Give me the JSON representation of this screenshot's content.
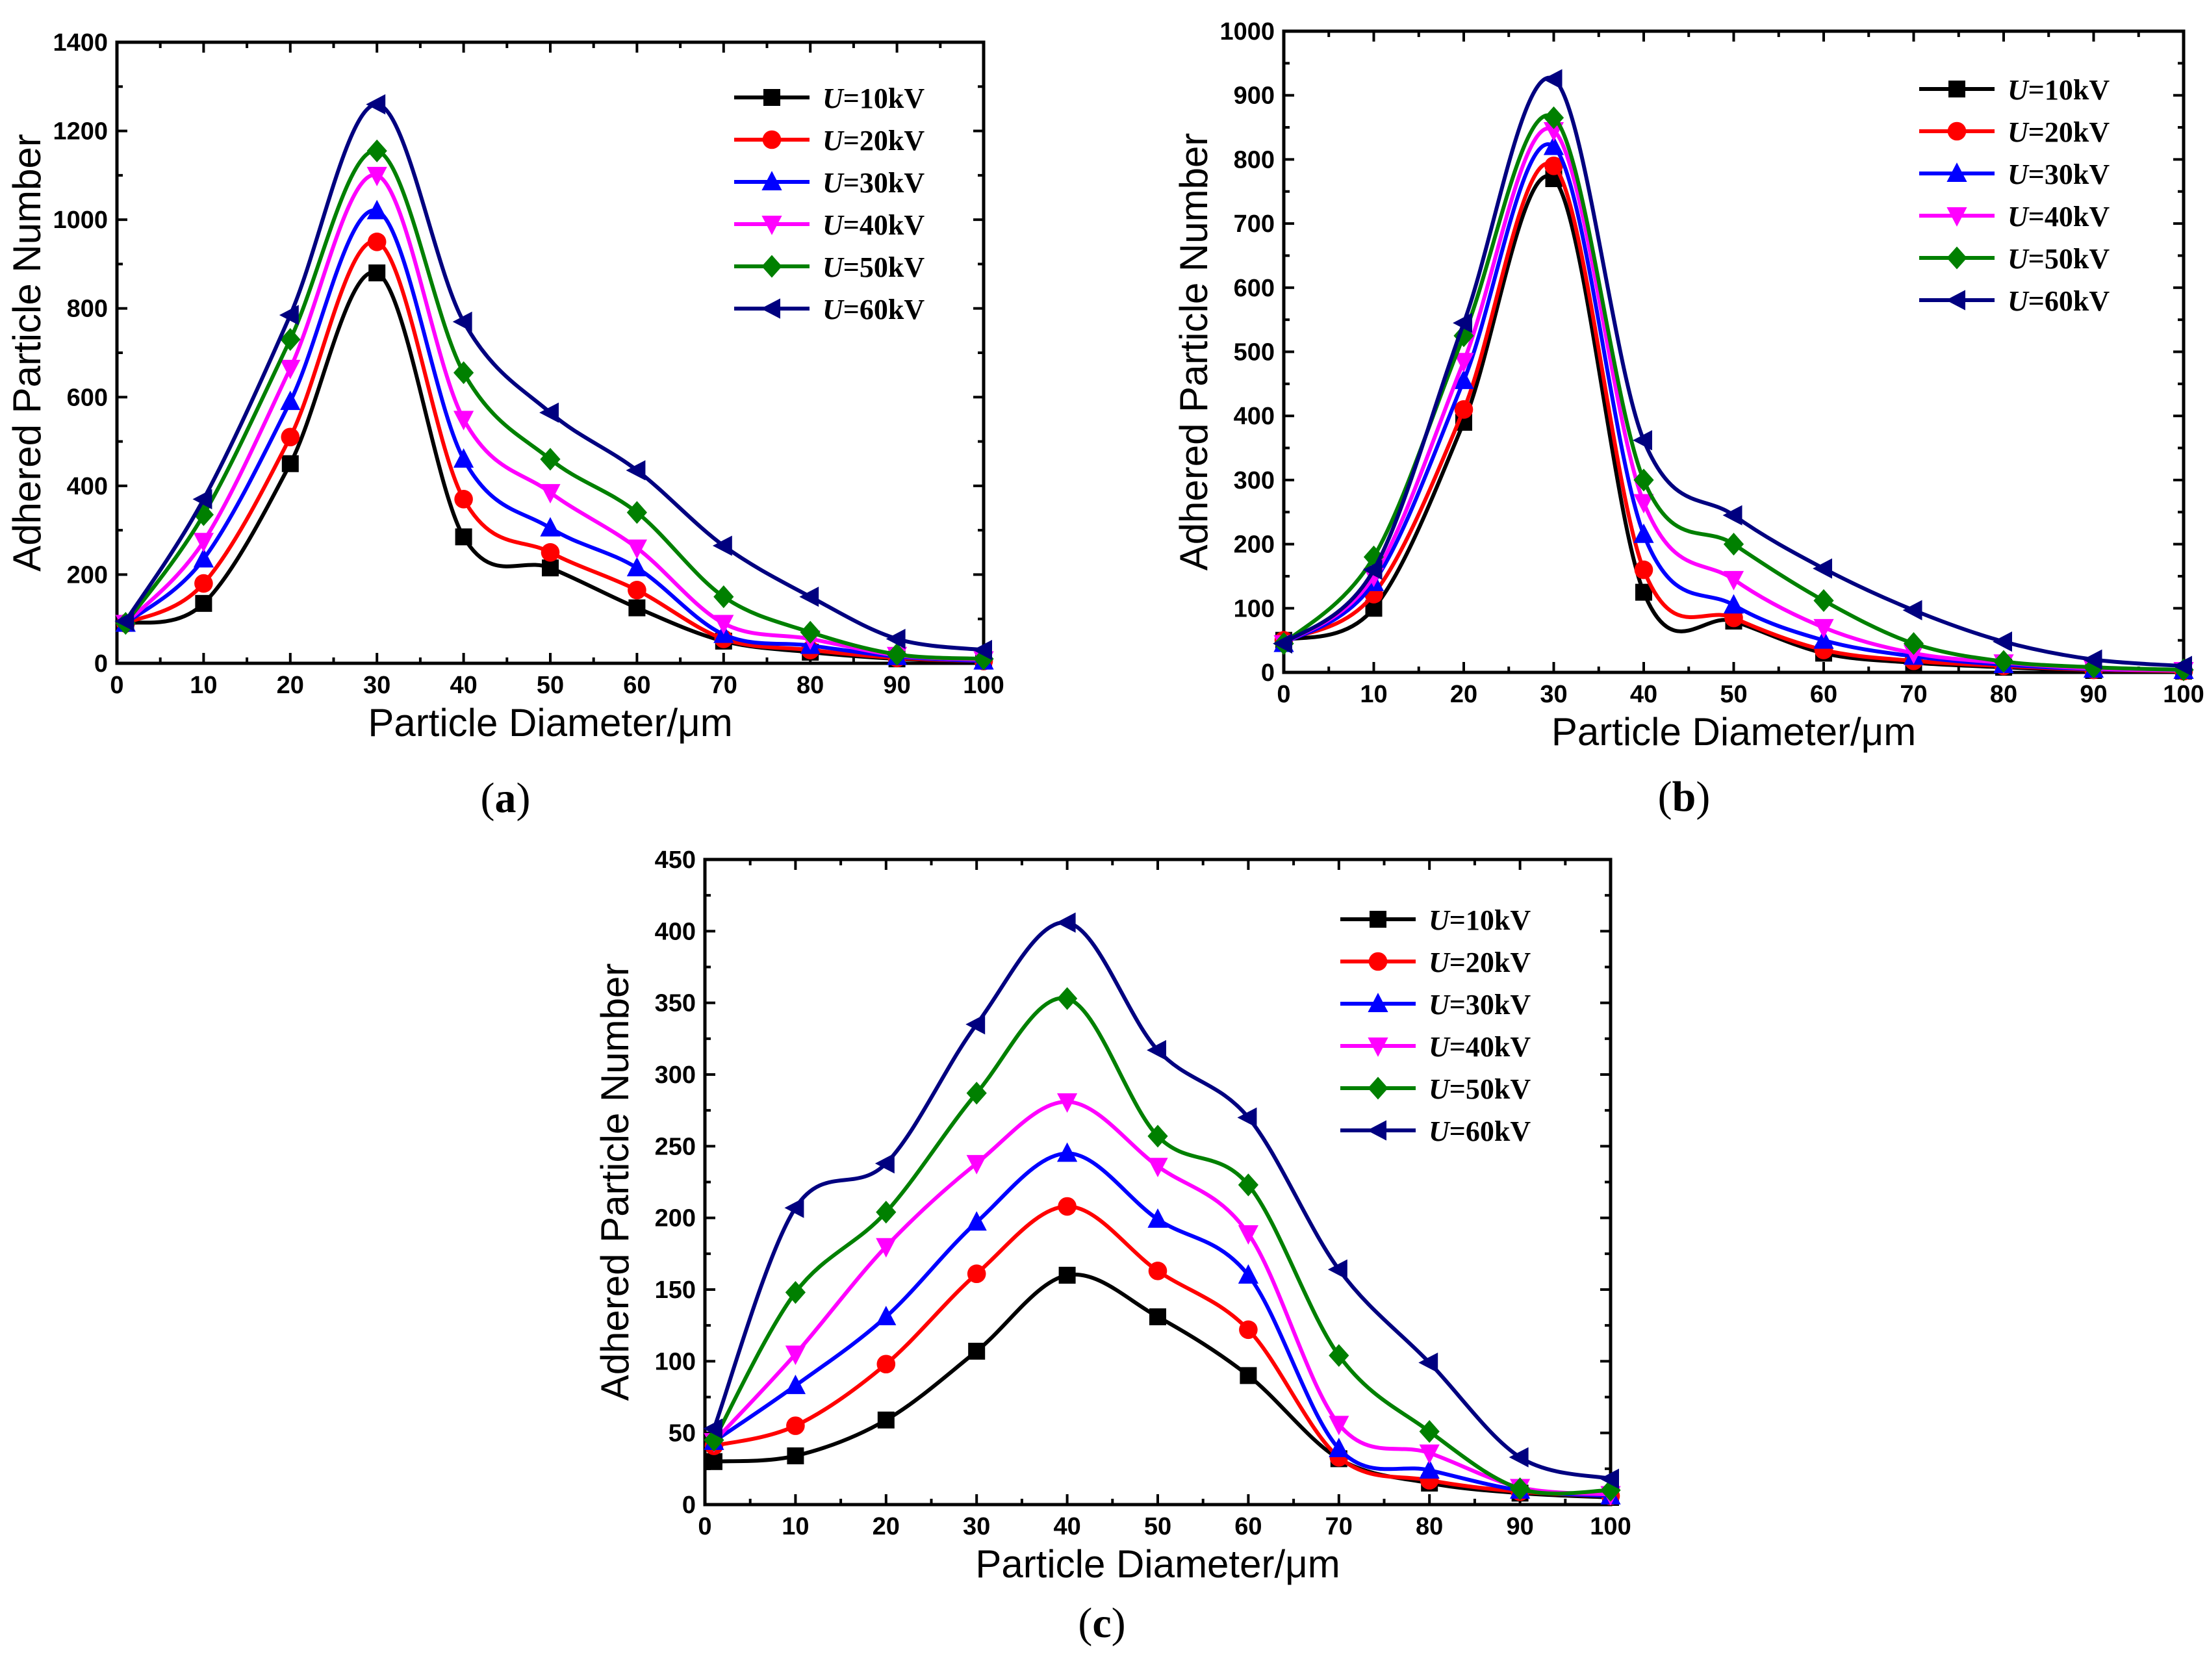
{
  "figure": {
    "panel_labels": [
      "(a)",
      "(b)",
      "(c)"
    ]
  },
  "series_style": [
    {
      "name": "U=10kV",
      "color": "#000000",
      "marker": "square"
    },
    {
      "name": "U=20kV",
      "color": "#ff0000",
      "marker": "circle"
    },
    {
      "name": "U=30kV",
      "color": "#0000ff",
      "marker": "triangle-up"
    },
    {
      "name": "U=40kV",
      "color": "#ff00ff",
      "marker": "triangle-down"
    },
    {
      "name": "U=50kV",
      "color": "#008000",
      "marker": "diamond"
    },
    {
      "name": "U=60kV",
      "color": "#000080",
      "marker": "triangle-left"
    }
  ],
  "chart_data": [
    {
      "type": "line",
      "label": "(a)",
      "xlabel": "Particle Diameter/μm",
      "ylabel": "Adhered Particle Number",
      "xlim": [
        0,
        100
      ],
      "ylim": [
        0,
        1400
      ],
      "xticks": [
        0,
        10,
        20,
        30,
        40,
        50,
        60,
        70,
        80,
        90,
        100
      ],
      "yticks": [
        0,
        200,
        400,
        600,
        800,
        1000,
        1200,
        1400
      ],
      "legend_position": "top-right",
      "x": [
        1,
        10,
        20,
        30,
        40,
        50,
        60,
        70,
        80,
        90,
        100
      ],
      "series": [
        {
          "name": "U=10kV",
          "legend_prefix": "U",
          "legend_suffix": "=10kV",
          "values": [
            90,
            135,
            450,
            880,
            285,
            215,
            125,
            50,
            25,
            10,
            5
          ]
        },
        {
          "name": "U=20kV",
          "legend_prefix": "U",
          "legend_suffix": "=20kV",
          "values": [
            90,
            180,
            510,
            950,
            370,
            250,
            165,
            55,
            30,
            12,
            5
          ]
        },
        {
          "name": "U=30kV",
          "legend_prefix": "U",
          "legend_suffix": "=30kV",
          "values": [
            90,
            235,
            590,
            1020,
            460,
            305,
            215,
            65,
            40,
            15,
            5
          ]
        },
        {
          "name": "U=40kV",
          "legend_prefix": "U",
          "legend_suffix": "=40kV",
          "values": [
            90,
            275,
            665,
            1100,
            550,
            385,
            260,
            90,
            55,
            18,
            8
          ]
        },
        {
          "name": "U=50kV",
          "legend_prefix": "U",
          "legend_suffix": "=50kV",
          "values": [
            90,
            335,
            730,
            1155,
            655,
            460,
            340,
            150,
            70,
            20,
            10
          ]
        },
        {
          "name": "U=60kV",
          "legend_prefix": "U",
          "legend_suffix": "=60kV",
          "values": [
            95,
            370,
            785,
            1260,
            770,
            565,
            435,
            265,
            150,
            55,
            30
          ]
        }
      ]
    },
    {
      "type": "line",
      "label": "(b)",
      "xlabel": "Particle Diameter/μm",
      "ylabel": "Adhered Particle Number",
      "xlim": [
        0,
        100
      ],
      "ylim": [
        0,
        1000
      ],
      "xticks": [
        0,
        10,
        20,
        30,
        40,
        50,
        60,
        70,
        80,
        90,
        100
      ],
      "yticks": [
        0,
        100,
        200,
        300,
        400,
        500,
        600,
        700,
        800,
        900,
        1000
      ],
      "legend_position": "top-right",
      "x": [
        0,
        10,
        20,
        30,
        40,
        50,
        60,
        70,
        80,
        90,
        100
      ],
      "series": [
        {
          "name": "U=10kV",
          "legend_prefix": "U",
          "legend_suffix": "=10kV",
          "values": [
            50,
            100,
            390,
            770,
            125,
            80,
            30,
            15,
            8,
            3,
            2
          ]
        },
        {
          "name": "U=20kV",
          "legend_prefix": "U",
          "legend_suffix": "=20kV",
          "values": [
            50,
            122,
            410,
            790,
            160,
            85,
            35,
            18,
            10,
            4,
            2
          ]
        },
        {
          "name": "U=30kV",
          "legend_prefix": "U",
          "legend_suffix": "=30kV",
          "values": [
            45,
            140,
            455,
            820,
            215,
            105,
            50,
            25,
            12,
            5,
            3
          ]
        },
        {
          "name": "U=40kV",
          "legend_prefix": "U",
          "legend_suffix": "=40kV",
          "values": [
            45,
            150,
            485,
            845,
            265,
            145,
            70,
            30,
            15,
            6,
            3
          ]
        },
        {
          "name": "U=50kV",
          "legend_prefix": "U",
          "legend_suffix": "=50kV",
          "values": [
            45,
            180,
            525,
            865,
            300,
            200,
            112,
            45,
            17,
            8,
            4
          ]
        },
        {
          "name": "U=60kV",
          "legend_prefix": "U",
          "legend_suffix": "=60kV",
          "values": [
            45,
            160,
            545,
            925,
            362,
            245,
            162,
            97,
            48,
            20,
            10
          ]
        }
      ]
    },
    {
      "type": "line",
      "label": "(c)",
      "xlabel": "Particle Diameter/μm",
      "ylabel": "Adhered Particle Number",
      "xlim": [
        0,
        100
      ],
      "ylim": [
        0,
        450
      ],
      "xticks": [
        0,
        10,
        20,
        30,
        40,
        50,
        60,
        70,
        80,
        90,
        100
      ],
      "yticks": [
        0,
        50,
        100,
        150,
        200,
        250,
        300,
        350,
        400,
        450
      ],
      "legend_position": "top-right",
      "x": [
        1,
        10,
        20,
        30,
        40,
        50,
        60,
        70,
        80,
        90,
        100
      ],
      "series": [
        {
          "name": "U=10kV",
          "legend_prefix": "U",
          "legend_suffix": "=10kV",
          "values": [
            30,
            34,
            59,
            107,
            160,
            131,
            90,
            32,
            15,
            8,
            5
          ]
        },
        {
          "name": "U=20kV",
          "legend_prefix": "U",
          "legend_suffix": "=20kV",
          "values": [
            41,
            55,
            98,
            161,
            208,
            163,
            122,
            33,
            17,
            9,
            6
          ]
        },
        {
          "name": "U=30kV",
          "legend_prefix": "U",
          "legend_suffix": "=30kV",
          "values": [
            44,
            83,
            131,
            197,
            245,
            199,
            160,
            39,
            24,
            10,
            6
          ]
        },
        {
          "name": "U=40kV",
          "legend_prefix": "U",
          "legend_suffix": "=40kV",
          "values": [
            44,
            105,
            180,
            238,
            281,
            236,
            189,
            56,
            36,
            12,
            7
          ]
        },
        {
          "name": "U=50kV",
          "legend_prefix": "U",
          "legend_suffix": "=50kV",
          "values": [
            45,
            148,
            204,
            287,
            353,
            257,
            223,
            104,
            51,
            11,
            10
          ]
        },
        {
          "name": "U=60kV",
          "legend_prefix": "U",
          "legend_suffix": "=60kV",
          "values": [
            53,
            207,
            238,
            335,
            406,
            317,
            270,
            164,
            99,
            33,
            18
          ]
        }
      ]
    }
  ]
}
